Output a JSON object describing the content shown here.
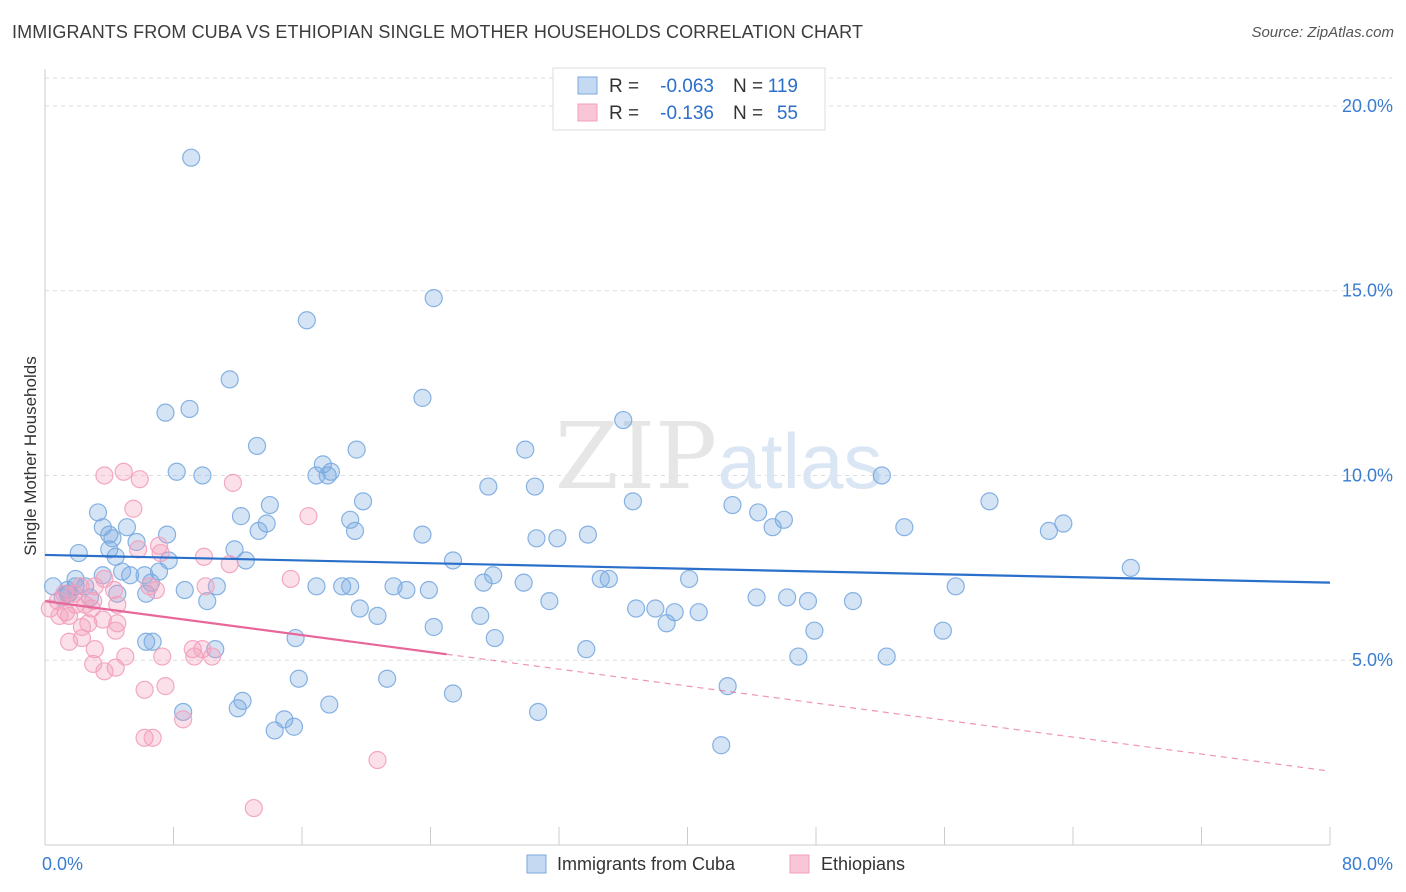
{
  "title": "IMMIGRANTS FROM CUBA VS ETHIOPIAN SINGLE MOTHER HOUSEHOLDS CORRELATION CHART",
  "source": "Source: ZipAtlas.com",
  "watermark": {
    "zip": "ZIP",
    "atlas": "atlas"
  },
  "chart_data": {
    "type": "scatter",
    "xlabel": "",
    "ylabel": "Single Mother Households",
    "xlim": [
      0,
      80
    ],
    "ylim": [
      0,
      21
    ],
    "x_tick_labels": [
      {
        "value": 0,
        "label": "0.0%"
      },
      {
        "value": 80,
        "label": "80.0%"
      }
    ],
    "y_tick_labels": [
      {
        "value": 5,
        "label": "5.0%"
      },
      {
        "value": 10,
        "label": "10.0%"
      },
      {
        "value": 15,
        "label": "15.0%"
      },
      {
        "value": 20,
        "label": "20.0%"
      }
    ],
    "grid": true,
    "legend_position": "top-center",
    "stats": [
      {
        "r_label": "R =",
        "r_value": "-0.063",
        "n_label": "N =",
        "n_value": "119"
      },
      {
        "r_label": "R =",
        "r_value": "-0.136",
        "n_label": "N =",
        "n_value": "55"
      }
    ],
    "series": [
      {
        "name": "Immigrants from Cuba",
        "color": "#7aaae0",
        "line_color": "#2a6fca",
        "trend": {
          "x0": 0,
          "y0": 7.85,
          "x1": 80,
          "y1": 7.1,
          "solid_until": 80
        },
        "points": [
          [
            9.1,
            18.6
          ],
          [
            24.2,
            14.8
          ],
          [
            16.3,
            14.2
          ],
          [
            11.5,
            12.6
          ],
          [
            23.5,
            12.1
          ],
          [
            9.0,
            11.8
          ],
          [
            7.5,
            11.7
          ],
          [
            36.0,
            11.5
          ],
          [
            13.2,
            10.8
          ],
          [
            19.4,
            10.7
          ],
          [
            29.9,
            10.7
          ],
          [
            17.3,
            10.3
          ],
          [
            17.8,
            10.1
          ],
          [
            8.2,
            10.1
          ],
          [
            9.8,
            10.0
          ],
          [
            16.9,
            10.0
          ],
          [
            17.6,
            10.0
          ],
          [
            52.1,
            10.0
          ],
          [
            27.6,
            9.7
          ],
          [
            30.5,
            9.7
          ],
          [
            36.6,
            9.3
          ],
          [
            19.8,
            9.3
          ],
          [
            58.8,
            9.3
          ],
          [
            14.0,
            9.2
          ],
          [
            42.8,
            9.2
          ],
          [
            44.4,
            9.0
          ],
          [
            3.3,
            9.0
          ],
          [
            12.2,
            8.9
          ],
          [
            19.0,
            8.8
          ],
          [
            13.8,
            8.7
          ],
          [
            46.0,
            8.8
          ],
          [
            63.4,
            8.7
          ],
          [
            53.5,
            8.6
          ],
          [
            45.3,
            8.6
          ],
          [
            3.6,
            8.6
          ],
          [
            5.1,
            8.6
          ],
          [
            13.3,
            8.5
          ],
          [
            19.3,
            8.5
          ],
          [
            62.5,
            8.5
          ],
          [
            4.0,
            8.4
          ],
          [
            7.6,
            8.4
          ],
          [
            23.5,
            8.4
          ],
          [
            33.8,
            8.4
          ],
          [
            30.6,
            8.3
          ],
          [
            31.9,
            8.3
          ],
          [
            5.7,
            8.2
          ],
          [
            4.2,
            8.3
          ],
          [
            4.0,
            8.0
          ],
          [
            11.8,
            8.0
          ],
          [
            4.4,
            7.8
          ],
          [
            12.5,
            7.7
          ],
          [
            25.4,
            7.7
          ],
          [
            7.7,
            7.7
          ],
          [
            2.1,
            7.9
          ],
          [
            67.6,
            7.5
          ],
          [
            4.8,
            7.4
          ],
          [
            7.1,
            7.4
          ],
          [
            27.9,
            7.3
          ],
          [
            3.6,
            7.3
          ],
          [
            1.9,
            7.2
          ],
          [
            5.3,
            7.3
          ],
          [
            6.2,
            7.3
          ],
          [
            6.6,
            7.1
          ],
          [
            34.6,
            7.2
          ],
          [
            40.1,
            7.2
          ],
          [
            29.8,
            7.1
          ],
          [
            1.9,
            7.0
          ],
          [
            10.7,
            7.0
          ],
          [
            2.5,
            7.0
          ],
          [
            19.0,
            7.0
          ],
          [
            0.5,
            7.0
          ],
          [
            1.4,
            6.9
          ],
          [
            1.5,
            6.8
          ],
          [
            27.3,
            7.1
          ],
          [
            16.9,
            7.0
          ],
          [
            18.5,
            7.0
          ],
          [
            22.5,
            6.9
          ],
          [
            35.1,
            7.2
          ],
          [
            21.7,
            7.0
          ],
          [
            23.9,
            6.9
          ],
          [
            1.4,
            6.8
          ],
          [
            2.8,
            6.7
          ],
          [
            4.5,
            6.8
          ],
          [
            6.3,
            6.8
          ],
          [
            8.7,
            6.9
          ],
          [
            56.7,
            7.0
          ],
          [
            44.3,
            6.7
          ],
          [
            46.2,
            6.7
          ],
          [
            47.5,
            6.6
          ],
          [
            31.4,
            6.6
          ],
          [
            10.1,
            6.6
          ],
          [
            1.1,
            6.7
          ],
          [
            50.3,
            6.6
          ],
          [
            19.6,
            6.4
          ],
          [
            36.8,
            6.4
          ],
          [
            38.0,
            6.4
          ],
          [
            40.7,
            6.3
          ],
          [
            39.2,
            6.3
          ],
          [
            20.7,
            6.2
          ],
          [
            27.1,
            6.2
          ],
          [
            38.7,
            6.0
          ],
          [
            24.2,
            5.9
          ],
          [
            47.9,
            5.8
          ],
          [
            55.9,
            5.8
          ],
          [
            28.0,
            5.6
          ],
          [
            15.6,
            5.6
          ],
          [
            6.3,
            5.5
          ],
          [
            6.7,
            5.5
          ],
          [
            33.7,
            5.3
          ],
          [
            10.6,
            5.3
          ],
          [
            46.9,
            5.1
          ],
          [
            52.4,
            5.1
          ],
          [
            15.8,
            4.5
          ],
          [
            21.3,
            4.5
          ],
          [
            42.5,
            4.3
          ],
          [
            25.4,
            4.1
          ],
          [
            12.3,
            3.9
          ],
          [
            12.0,
            3.7
          ],
          [
            17.7,
            3.8
          ],
          [
            30.7,
            3.6
          ],
          [
            8.6,
            3.6
          ],
          [
            14.9,
            3.4
          ],
          [
            15.5,
            3.2
          ],
          [
            14.3,
            3.1
          ],
          [
            42.1,
            2.7
          ]
        ]
      },
      {
        "name": "Ethiopians",
        "color": "#f2a0bc",
        "line_color": "#e8679a",
        "trend": {
          "x0": 0,
          "y0": 6.6,
          "x1": 80,
          "y1": 2.0,
          "solid_until": 25
        },
        "points": [
          [
            4.9,
            10.1
          ],
          [
            3.7,
            10.0
          ],
          [
            5.9,
            9.9
          ],
          [
            11.7,
            9.8
          ],
          [
            5.5,
            9.1
          ],
          [
            16.4,
            8.9
          ],
          [
            7.1,
            8.1
          ],
          [
            5.8,
            8.0
          ],
          [
            7.2,
            7.9
          ],
          [
            9.9,
            7.8
          ],
          [
            11.5,
            7.6
          ],
          [
            15.3,
            7.2
          ],
          [
            3.7,
            7.2
          ],
          [
            3.1,
            7.0
          ],
          [
            6.5,
            7.0
          ],
          [
            2.2,
            7.0
          ],
          [
            6.9,
            6.9
          ],
          [
            10.0,
            7.0
          ],
          [
            1.8,
            6.8
          ],
          [
            4.3,
            6.9
          ],
          [
            1.2,
            6.8
          ],
          [
            0.8,
            6.6
          ],
          [
            3.0,
            6.6
          ],
          [
            1.9,
            6.5
          ],
          [
            0.3,
            6.4
          ],
          [
            1.3,
            6.3
          ],
          [
            2.9,
            6.4
          ],
          [
            2.5,
            6.5
          ],
          [
            4.5,
            6.5
          ],
          [
            0.9,
            6.2
          ],
          [
            1.5,
            6.2
          ],
          [
            2.7,
            6.0
          ],
          [
            4.5,
            6.0
          ],
          [
            3.6,
            6.1
          ],
          [
            2.3,
            5.9
          ],
          [
            4.4,
            5.8
          ],
          [
            2.3,
            5.6
          ],
          [
            3.1,
            5.3
          ],
          [
            9.2,
            5.3
          ],
          [
            9.8,
            5.3
          ],
          [
            1.5,
            5.5
          ],
          [
            5.0,
            5.1
          ],
          [
            7.3,
            5.1
          ],
          [
            9.3,
            5.1
          ],
          [
            3.0,
            4.9
          ],
          [
            4.4,
            4.8
          ],
          [
            3.7,
            4.7
          ],
          [
            7.5,
            4.3
          ],
          [
            6.2,
            4.2
          ],
          [
            8.6,
            3.4
          ],
          [
            6.2,
            2.9
          ],
          [
            6.7,
            2.9
          ],
          [
            20.7,
            2.3
          ],
          [
            13.0,
            1.0
          ],
          [
            10.4,
            5.1
          ]
        ]
      }
    ]
  }
}
